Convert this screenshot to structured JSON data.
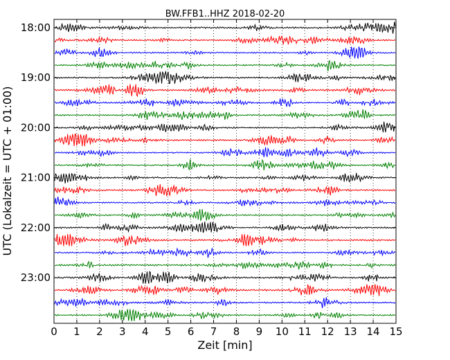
{
  "chart_data": {
    "type": "line",
    "title": "BW.FFB1..HHZ 2018-02-20",
    "xlabel": "Zeit  [min]",
    "ylabel": "UTC (Lokalzeit = UTC + 01:00)",
    "xlim": [
      0,
      15
    ],
    "x_ticks": [
      "0",
      "1",
      "2",
      "3",
      "4",
      "5",
      "6",
      "7",
      "8",
      "9",
      "10",
      "11",
      "12",
      "13",
      "14",
      "15"
    ],
    "y_ticks": [
      "18:00",
      "19:00",
      "20:00",
      "21:00",
      "22:00",
      "23:00"
    ],
    "grid": "vertical dotted",
    "trace_colors": [
      "#000000",
      "#ff0000",
      "#0000ff",
      "#008000"
    ],
    "traces": [
      {
        "start": "18:00",
        "amplitude": 0.35
      },
      {
        "start": "18:15",
        "amplitude": 0.32
      },
      {
        "start": "18:30",
        "amplitude": 0.3
      },
      {
        "start": "18:45",
        "amplitude": 0.28
      },
      {
        "start": "19:00",
        "amplitude": 0.33
      },
      {
        "start": "19:15",
        "amplitude": 0.36
      },
      {
        "start": "19:30",
        "amplitude": 0.3
      },
      {
        "start": "19:45",
        "amplitude": 0.34
      },
      {
        "start": "20:00",
        "amplitude": 0.33
      },
      {
        "start": "20:15",
        "amplitude": 0.35
      },
      {
        "start": "20:30",
        "amplitude": 0.3
      },
      {
        "start": "20:45",
        "amplitude": 0.32
      },
      {
        "start": "21:00",
        "amplitude": 0.34
      },
      {
        "start": "21:15",
        "amplitude": 0.33
      },
      {
        "start": "21:30",
        "amplitude": 0.3
      },
      {
        "start": "21:45",
        "amplitude": 0.31
      },
      {
        "start": "22:00",
        "amplitude": 0.33
      },
      {
        "start": "22:15",
        "amplitude": 0.35
      },
      {
        "start": "22:30",
        "amplitude": 0.3
      },
      {
        "start": "22:45",
        "amplitude": 0.36
      },
      {
        "start": "23:00",
        "amplitude": 0.34
      },
      {
        "start": "23:15",
        "amplitude": 0.36
      },
      {
        "start": "23:30",
        "amplitude": 0.31
      },
      {
        "start": "23:45",
        "amplitude": 0.32
      }
    ]
  }
}
